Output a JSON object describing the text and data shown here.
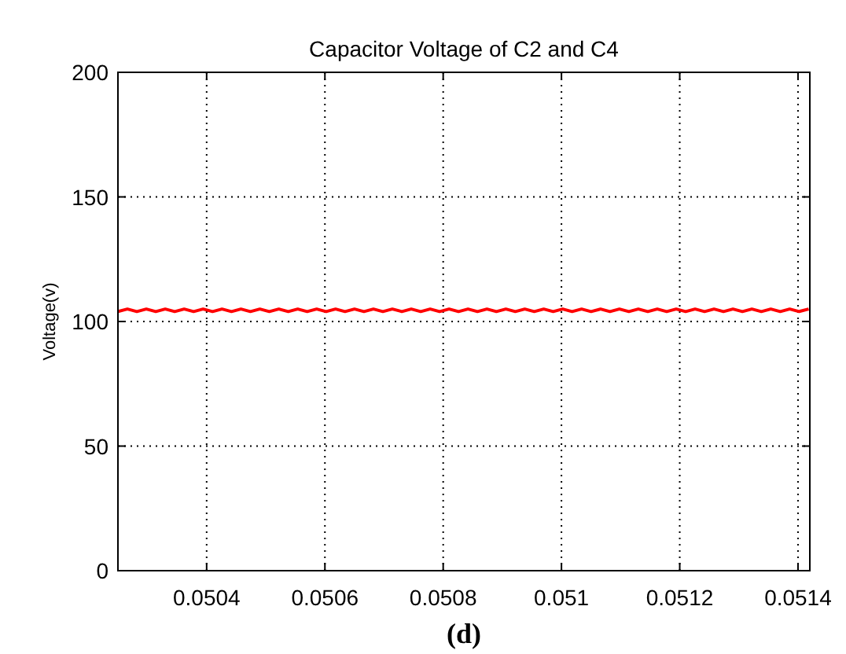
{
  "chart_data": {
    "type": "line",
    "title": "Capacitor Voltage of C2 and C4",
    "ylabel": "Voltage(v)",
    "annotations": [
      "(d)"
    ],
    "xlim": [
      0.05025,
      0.05142
    ],
    "xticks": [
      0.0504,
      0.0506,
      0.0508,
      0.051,
      0.0512,
      0.0514
    ],
    "ylim": [
      0,
      200
    ],
    "yticks": [
      0,
      50,
      100,
      150,
      200
    ],
    "grid": true,
    "series": [
      {
        "color": "#ff0000",
        "x": [
          0.05025,
          0.050266,
          0.050282,
          0.050298,
          0.050314,
          0.05033,
          0.050346,
          0.050362,
          0.050378,
          0.050394,
          0.05041,
          0.050426,
          0.050442,
          0.050458,
          0.050474,
          0.05049,
          0.050506,
          0.050522,
          0.050538,
          0.050554,
          0.05057,
          0.050586,
          0.050602,
          0.050618,
          0.050634,
          0.05065,
          0.050666,
          0.050682,
          0.050698,
          0.050714,
          0.05073,
          0.050746,
          0.050762,
          0.050778,
          0.050794,
          0.05081,
          0.050826,
          0.050842,
          0.050858,
          0.050874,
          0.05089,
          0.050906,
          0.050922,
          0.050938,
          0.050954,
          0.05097,
          0.050986,
          0.051002,
          0.051018,
          0.051034,
          0.05105,
          0.051066,
          0.051082,
          0.051098,
          0.051114,
          0.05113,
          0.051146,
          0.051162,
          0.051178,
          0.051194,
          0.05121,
          0.051226,
          0.051242,
          0.051258,
          0.051274,
          0.05129,
          0.051306,
          0.051322,
          0.051338,
          0.051354,
          0.05137,
          0.051386,
          0.051402,
          0.051418
        ],
        "values": [
          104,
          105,
          104,
          105,
          104,
          105,
          104,
          105,
          104,
          105,
          104,
          105,
          104,
          105,
          104,
          105,
          104,
          105,
          104,
          105,
          104,
          105,
          104,
          105,
          104,
          105,
          104,
          105,
          104,
          105,
          104,
          105,
          104,
          105,
          104,
          105,
          104,
          105,
          104,
          105,
          104,
          105,
          104,
          105,
          104,
          105,
          104,
          105,
          104,
          105,
          104,
          105,
          104,
          105,
          104,
          105,
          104,
          105,
          104,
          105,
          104,
          105,
          104,
          105,
          104,
          105,
          104,
          105,
          104,
          105,
          104,
          105,
          104,
          105
        ]
      }
    ]
  }
}
